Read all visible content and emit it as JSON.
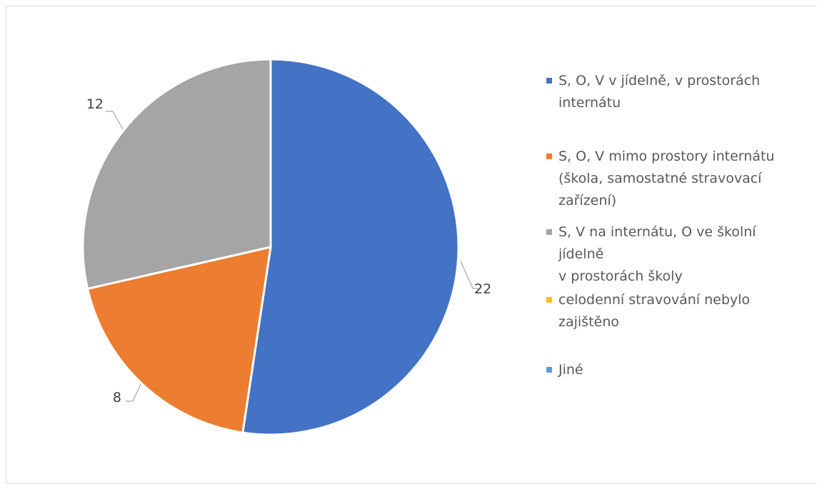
{
  "chart_data": {
    "type": "pie",
    "title": "",
    "categories": [
      "S, O, V v jídelně, v prostorách internátu",
      "S, O, V mimo prostory internátu (škola, samostatné stravovací zařízení)",
      "S, V na internátu, O ve školní jídelně v prostorách školy",
      "celodenní stravování nebylo zajištěno",
      "Jiné"
    ],
    "values": [
      22,
      8,
      12,
      0,
      0
    ],
    "data_labels": [
      "22",
      "8",
      "12",
      "",
      ""
    ],
    "colors": [
      "#4472c4",
      "#ed7d31",
      "#a5a5a5",
      "#ffc000",
      "#5b9bd5"
    ],
    "legend_position": "right",
    "legend_lines": [
      [
        "S, O, V v jídelně, v prostorách",
        "internátu"
      ],
      [
        "S, O, V mimo prostory internátu",
        "(škola, samostatné stravovací",
        "zařízení)"
      ],
      [
        "S, V na internátu, O ve školní jídelně",
        "v prostorách školy"
      ],
      [
        "celodenní stravování nebylo",
        "zajištěno"
      ],
      [
        "Jiné"
      ]
    ]
  }
}
